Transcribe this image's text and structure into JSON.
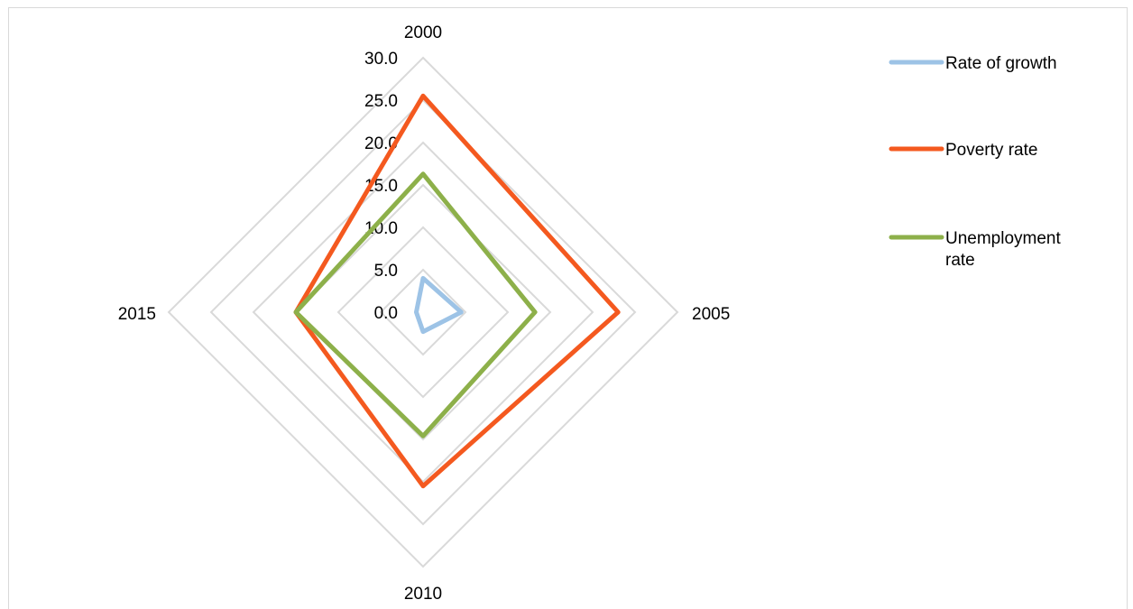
{
  "chart_data": {
    "type": "radar",
    "title": "",
    "categories": [
      "2000",
      "2005",
      "2010",
      "2015"
    ],
    "axis": {
      "min": 0,
      "max": 30,
      "step": 5,
      "tick_labels": [
        "0.0",
        "5.0",
        "10.0",
        "15.0",
        "20.0",
        "25.0",
        "30.0"
      ]
    },
    "grid": true,
    "legend_position": "top-right",
    "series": [
      {
        "name": "Rate of growth",
        "color": "#9DC3E6",
        "values": [
          4.0,
          4.5,
          2.3,
          0.8
        ]
      },
      {
        "name": "Poverty rate",
        "color": "#F4591F",
        "values": [
          25.5,
          23.0,
          20.5,
          15.0
        ]
      },
      {
        "name": "Unemployment rate",
        "color": "#8DB04A",
        "values": [
          16.3,
          13.2,
          14.6,
          15.0
        ]
      }
    ]
  }
}
